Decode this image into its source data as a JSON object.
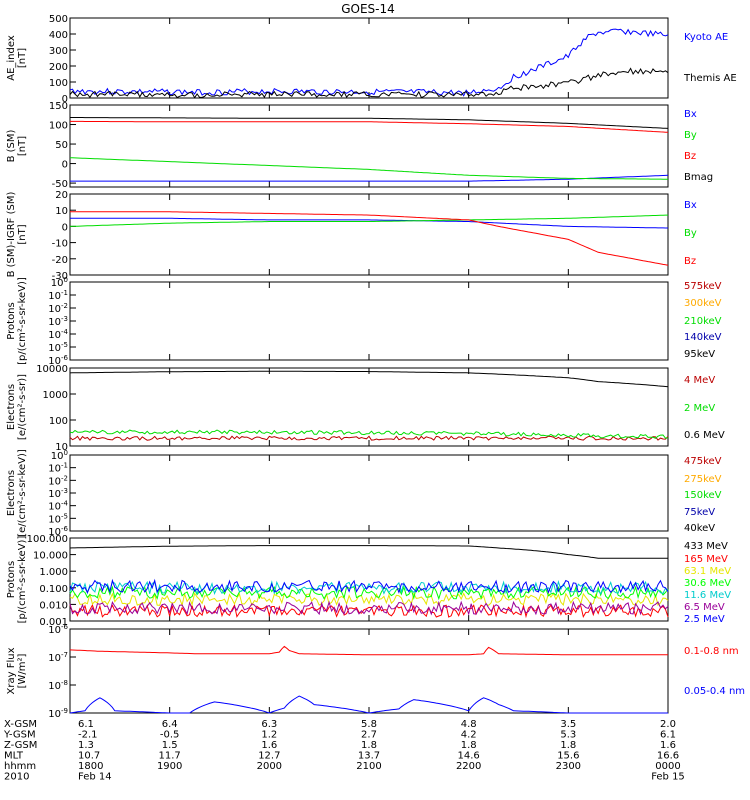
{
  "title": "GOES-14",
  "colors": {
    "black": "#000000",
    "blue": "#0000ff",
    "red": "#ff0000",
    "green": "#00dd00",
    "darkred": "#bb0000",
    "orange": "#ffaa00",
    "yellow": "#e6e600",
    "lime": "#00ff00",
    "cyan": "#00cccc",
    "purple": "#990099",
    "navy": "#0000aa"
  },
  "chart_data": [
    {
      "type": "line",
      "title": "GOES-14",
      "ylabel_lines": [
        "AE_index",
        "[nT]"
      ],
      "yscale": "linear",
      "ylim": [
        0,
        500
      ],
      "yticks": [
        "0",
        "100",
        "200",
        "300",
        "400",
        "500"
      ],
      "grid": false,
      "xlim": [
        1800,
        2400
      ],
      "series": [
        {
          "name": "Kyoto AE",
          "color": "blue",
          "x": [
            1800,
            1830,
            1900,
            1930,
            2000,
            2030,
            2100,
            2130,
            2200,
            2230,
            2245,
            2300,
            2310,
            2320,
            2330,
            2340,
            2350,
            2400
          ],
          "y": [
            45,
            40,
            38,
            35,
            42,
            40,
            38,
            36,
            32,
            60,
            130,
            260,
            330,
            380,
            410,
            405,
            420,
            390
          ]
        },
        {
          "name": "Themis AE",
          "color": "black",
          "x": [
            1800,
            1830,
            1900,
            1930,
            2000,
            2030,
            2100,
            2130,
            2200,
            2230,
            2245,
            2300,
            2310,
            2320,
            2330,
            2340,
            2350,
            2400
          ],
          "y": [
            25,
            22,
            22,
            20,
            22,
            22,
            20,
            20,
            22,
            35,
            60,
            95,
            110,
            125,
            140,
            150,
            165,
            175
          ]
        }
      ]
    },
    {
      "type": "line",
      "ylabel_lines": [
        "B (SM)",
        "[nT]"
      ],
      "yscale": "linear",
      "ylim": [
        -60,
        150
      ],
      "yticks": [
        "-50",
        "0",
        "50",
        "100",
        "150"
      ],
      "grid": false,
      "xlim": [
        1800,
        2400
      ],
      "series": [
        {
          "name": "Bx",
          "color": "blue",
          "x": [
            1800,
            2000,
            2200,
            2300,
            2400
          ],
          "y": [
            -45,
            -45,
            -45,
            -40,
            -30
          ]
        },
        {
          "name": "By",
          "color": "green",
          "x": [
            1800,
            1900,
            2000,
            2100,
            2200,
            2300,
            2400
          ],
          "y": [
            15,
            5,
            -5,
            -15,
            -30,
            -38,
            -40
          ]
        },
        {
          "name": "Bz",
          "color": "red",
          "x": [
            1800,
            1900,
            2000,
            2100,
            2200,
            2300,
            2400
          ],
          "y": [
            108,
            107,
            107,
            107,
            102,
            95,
            80
          ]
        },
        {
          "name": "Bmag",
          "color": "black",
          "x": [
            1800,
            1900,
            2000,
            2100,
            2200,
            2300,
            2400
          ],
          "y": [
            118,
            117,
            116,
            116,
            112,
            103,
            90
          ]
        }
      ]
    },
    {
      "type": "line",
      "ylabel_lines": [
        "B (SM)-IGRF (SM)",
        "[nT]"
      ],
      "yscale": "linear",
      "ylim": [
        -30,
        20
      ],
      "yticks": [
        "-30",
        "-20",
        "-10",
        "0",
        "10",
        "20"
      ],
      "grid": false,
      "xlim": [
        1800,
        2400
      ],
      "series": [
        {
          "name": "Bx",
          "color": "blue",
          "x": [
            1800,
            1900,
            2000,
            2100,
            2200,
            2300,
            2400
          ],
          "y": [
            5,
            5,
            4,
            4,
            3,
            0,
            -1
          ]
        },
        {
          "name": "By",
          "color": "green",
          "x": [
            1800,
            1900,
            2000,
            2100,
            2200,
            2300,
            2400
          ],
          "y": [
            0,
            2,
            3,
            3,
            4,
            5,
            7
          ]
        },
        {
          "name": "Bz",
          "color": "red",
          "x": [
            1800,
            1900,
            2000,
            2100,
            2200,
            2230,
            2300,
            2330,
            2400
          ],
          "y": [
            9,
            9,
            8,
            7,
            4,
            0,
            -8,
            -16,
            -24
          ]
        }
      ]
    },
    {
      "type": "line",
      "ylabel_lines": [
        "Protons",
        "[p/(cm²-s-sr-keV)]"
      ],
      "yscale": "log",
      "ylim_exp": [
        -6,
        0
      ],
      "yticks_exp": [
        -6,
        -5,
        -4,
        -3,
        -2,
        -1,
        0
      ],
      "grid": false,
      "xlim": [
        1800,
        2400
      ],
      "series": [
        {
          "name": "575keV",
          "color": "darkred",
          "x": [],
          "y": []
        },
        {
          "name": "300keV",
          "color": "orange",
          "x": [],
          "y": []
        },
        {
          "name": "210keV",
          "color": "green",
          "x": [],
          "y": []
        },
        {
          "name": "140keV",
          "color": "navy",
          "x": [],
          "y": []
        },
        {
          "name": "95keV",
          "color": "black",
          "x": [],
          "y": []
        }
      ]
    },
    {
      "type": "line",
      "ylabel_lines": [
        "Electrons",
        "[e/(cm²-s-sr)]"
      ],
      "yscale": "log",
      "ylim": [
        10,
        10000
      ],
      "yticks": [
        "10",
        "100",
        "1000",
        "10000"
      ],
      "grid": false,
      "xlim": [
        1800,
        2400
      ],
      "series": [
        {
          "name": "4 MeV",
          "color": "darkred",
          "x": [
            1800,
            2000,
            2200,
            2400
          ],
          "y": [
            20,
            20,
            20,
            20
          ]
        },
        {
          "name": "2 MeV",
          "color": "green",
          "x": [
            1800,
            2000,
            2200,
            2300,
            2400
          ],
          "y": [
            35,
            34,
            30,
            26,
            22
          ]
        },
        {
          "name": "0.6 MeV",
          "color": "black",
          "x": [
            1800,
            1900,
            2000,
            2100,
            2200,
            2230,
            2300,
            2330,
            2400
          ],
          "y": [
            6500,
            7200,
            7500,
            7300,
            6500,
            5800,
            4200,
            3000,
            1900
          ]
        }
      ]
    },
    {
      "type": "line",
      "ylabel_lines": [
        "Electrons",
        "[e/(cm²-s-sr-keV)]"
      ],
      "yscale": "log",
      "ylim_exp": [
        -6,
        0
      ],
      "yticks_exp": [
        -6,
        -5,
        -4,
        -3,
        -2,
        -1,
        0
      ],
      "grid": false,
      "xlim": [
        1800,
        2400
      ],
      "series": [
        {
          "name": "475keV",
          "color": "darkred",
          "x": [],
          "y": []
        },
        {
          "name": "275keV",
          "color": "orange",
          "x": [],
          "y": []
        },
        {
          "name": "150keV",
          "color": "green",
          "x": [],
          "y": []
        },
        {
          "name": "75keV",
          "color": "navy",
          "x": [],
          "y": []
        },
        {
          "name": "40keV",
          "color": "black",
          "x": [],
          "y": []
        }
      ]
    },
    {
      "type": "line",
      "ylabel_lines": [
        "Protons",
        "[p/(cm²-s-sr-keV)]"
      ],
      "yscale": "log",
      "ylim": [
        0.001,
        100
      ],
      "yticks": [
        "0.001",
        "0.010",
        "0.100",
        "1.000",
        "10.000",
        "100.000"
      ],
      "grid": false,
      "xlim": [
        1800,
        2400
      ],
      "series": [
        {
          "name": "433 MeV",
          "color": "black",
          "x": [
            1800,
            1900,
            2000,
            2100,
            2200,
            2230,
            2300,
            2330,
            2400
          ],
          "y": [
            25,
            32,
            35,
            35,
            33,
            25,
            10,
            6,
            6
          ]
        },
        {
          "name": "165 MeV",
          "color": "red",
          "x": [
            1800,
            2400
          ],
          "y": [
            0.004,
            0.004
          ]
        },
        {
          "name": "63.1 MeV",
          "color": "yellow",
          "x": [
            1800,
            2400
          ],
          "y": [
            0.02,
            0.02
          ]
        },
        {
          "name": "30.6 MeV",
          "color": "lime",
          "x": [
            1800,
            2400
          ],
          "y": [
            0.05,
            0.05
          ]
        },
        {
          "name": "11.6 MeV",
          "color": "cyan",
          "x": [
            1800,
            2400
          ],
          "y": [
            0.1,
            0.1
          ]
        },
        {
          "name": "6.5 MeV",
          "color": "purple",
          "x": [
            1800,
            2400
          ],
          "y": [
            0.006,
            0.006
          ]
        },
        {
          "name": "2.5 MeV",
          "color": "blue",
          "x": [
            1800,
            2400
          ],
          "y": [
            0.12,
            0.12
          ]
        }
      ]
    },
    {
      "type": "line",
      "ylabel_lines": [
        "Xray Flux",
        "[W/m²]"
      ],
      "yscale": "log",
      "ylim_exp": [
        -9,
        -6
      ],
      "yticks_exp": [
        -9,
        -8,
        -7,
        -6
      ],
      "grid": false,
      "xlim": [
        1800,
        2400
      ],
      "series": [
        {
          "name": "0.1-0.8 nm",
          "color": "red",
          "x": [
            1800,
            1830,
            1900,
            1930,
            2000,
            2010,
            2015,
            2020,
            2030,
            2100,
            2130,
            2200,
            2215,
            2220,
            2230,
            2300,
            2400
          ],
          "y": [
            1.8e-07,
            1.6e-07,
            1.4e-07,
            1.3e-07,
            1.3e-07,
            1.5e-07,
            2.4e-07,
            1.7e-07,
            1.3e-07,
            1.2e-07,
            1.2e-07,
            1.2e-07,
            1.3e-07,
            2.2e-07,
            1.3e-07,
            1.2e-07,
            1.2e-07
          ]
        },
        {
          "name": "0.05-0.4 nm",
          "color": "blue",
          "x": [
            1800,
            1815,
            1830,
            1845,
            1900,
            1920,
            1945,
            2000,
            2015,
            2030,
            2045,
            2100,
            2130,
            2145,
            2200,
            2215,
            2230,
            2245,
            2300,
            2330,
            2400
          ],
          "y": [
            1e-09,
            1.2e-09,
            3.5e-09,
            1.2e-09,
            1e-09,
            1e-09,
            2.5e-09,
            1e-09,
            1.5e-09,
            4e-09,
            2e-09,
            1e-09,
            1.4e-09,
            3e-09,
            1.2e-09,
            3.5e-09,
            2e-09,
            1.2e-09,
            1e-09,
            1e-09,
            1e-09
          ]
        }
      ]
    }
  ],
  "ephemeris": {
    "labels": [
      "X-GSM",
      "Y-GSM",
      "Z-GSM",
      "MLT",
      "hhmm",
      "2010"
    ],
    "columns": [
      [
        "6.1",
        "-2.1",
        "1.3",
        "10.7",
        "1800",
        "Feb 14"
      ],
      [
        "6.4",
        "-0.5",
        "1.5",
        "11.7",
        "1900",
        ""
      ],
      [
        "6.3",
        "1.2",
        "1.6",
        "12.7",
        "2000",
        ""
      ],
      [
        "5.8",
        "2.7",
        "1.8",
        "13.7",
        "2100",
        ""
      ],
      [
        "4.8",
        "4.2",
        "1.8",
        "14.6",
        "2200",
        ""
      ],
      [
        "3.5",
        "5.3",
        "1.8",
        "15.6",
        "2300",
        ""
      ],
      [
        "2.0",
        "6.1",
        "1.6",
        "16.6",
        "0000",
        "Feb 15"
      ]
    ]
  }
}
